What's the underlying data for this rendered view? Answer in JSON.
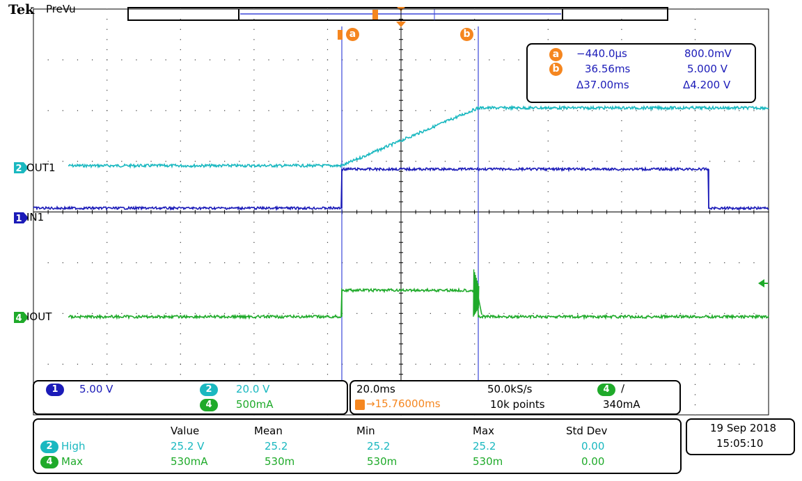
{
  "header": {
    "brand": "Tek",
    "mode": "PreVu"
  },
  "colors": {
    "ch1": "#1b1bb8",
    "ch2": "#1ab8c0",
    "ch4": "#1faa2a",
    "cursor": "#f5861f",
    "cursor_line": "#3a46d8",
    "grid": "#000000"
  },
  "cursors": {
    "a_label": "a",
    "b_label": "b",
    "a_time": "−440.0µs",
    "a_value": "800.0mV",
    "b_time": "36.56ms",
    "b_value": "5.000 V",
    "delta_time": "Δ37.00ms",
    "delta_value": "Δ4.200 V"
  },
  "channels": {
    "ch2": {
      "num": "2",
      "label": "OUT1",
      "scale": "20.0 V"
    },
    "ch1": {
      "num": "1",
      "label": "IN1",
      "scale": "5.00 V"
    },
    "ch4": {
      "num": "4",
      "label": "IOUT",
      "scale": "500mA"
    }
  },
  "timebase": {
    "scale": "20.0ms",
    "sample_rate": "50.0kS/s",
    "trigger_pos": "→15.76000ms",
    "record": "10k points"
  },
  "trigger": {
    "channel": "4",
    "slope_icon": "rising-edge",
    "slope_glyph": "∕",
    "level": "340mA"
  },
  "measurements": {
    "headers": [
      "Value",
      "Mean",
      "Min",
      "Max",
      "Std Dev"
    ],
    "rows": [
      {
        "ch": "2",
        "name": "High",
        "value": "25.2 V",
        "mean": "25.2",
        "min": "25.2",
        "max": "25.2",
        "std": "0.00"
      },
      {
        "ch": "4",
        "name": "Max",
        "value": "530mA",
        "mean": "530m",
        "min": "530m",
        "max": "530m",
        "std": "0.00"
      }
    ]
  },
  "datetime": {
    "date": "19 Sep  2018",
    "time": "15:05:10"
  }
}
